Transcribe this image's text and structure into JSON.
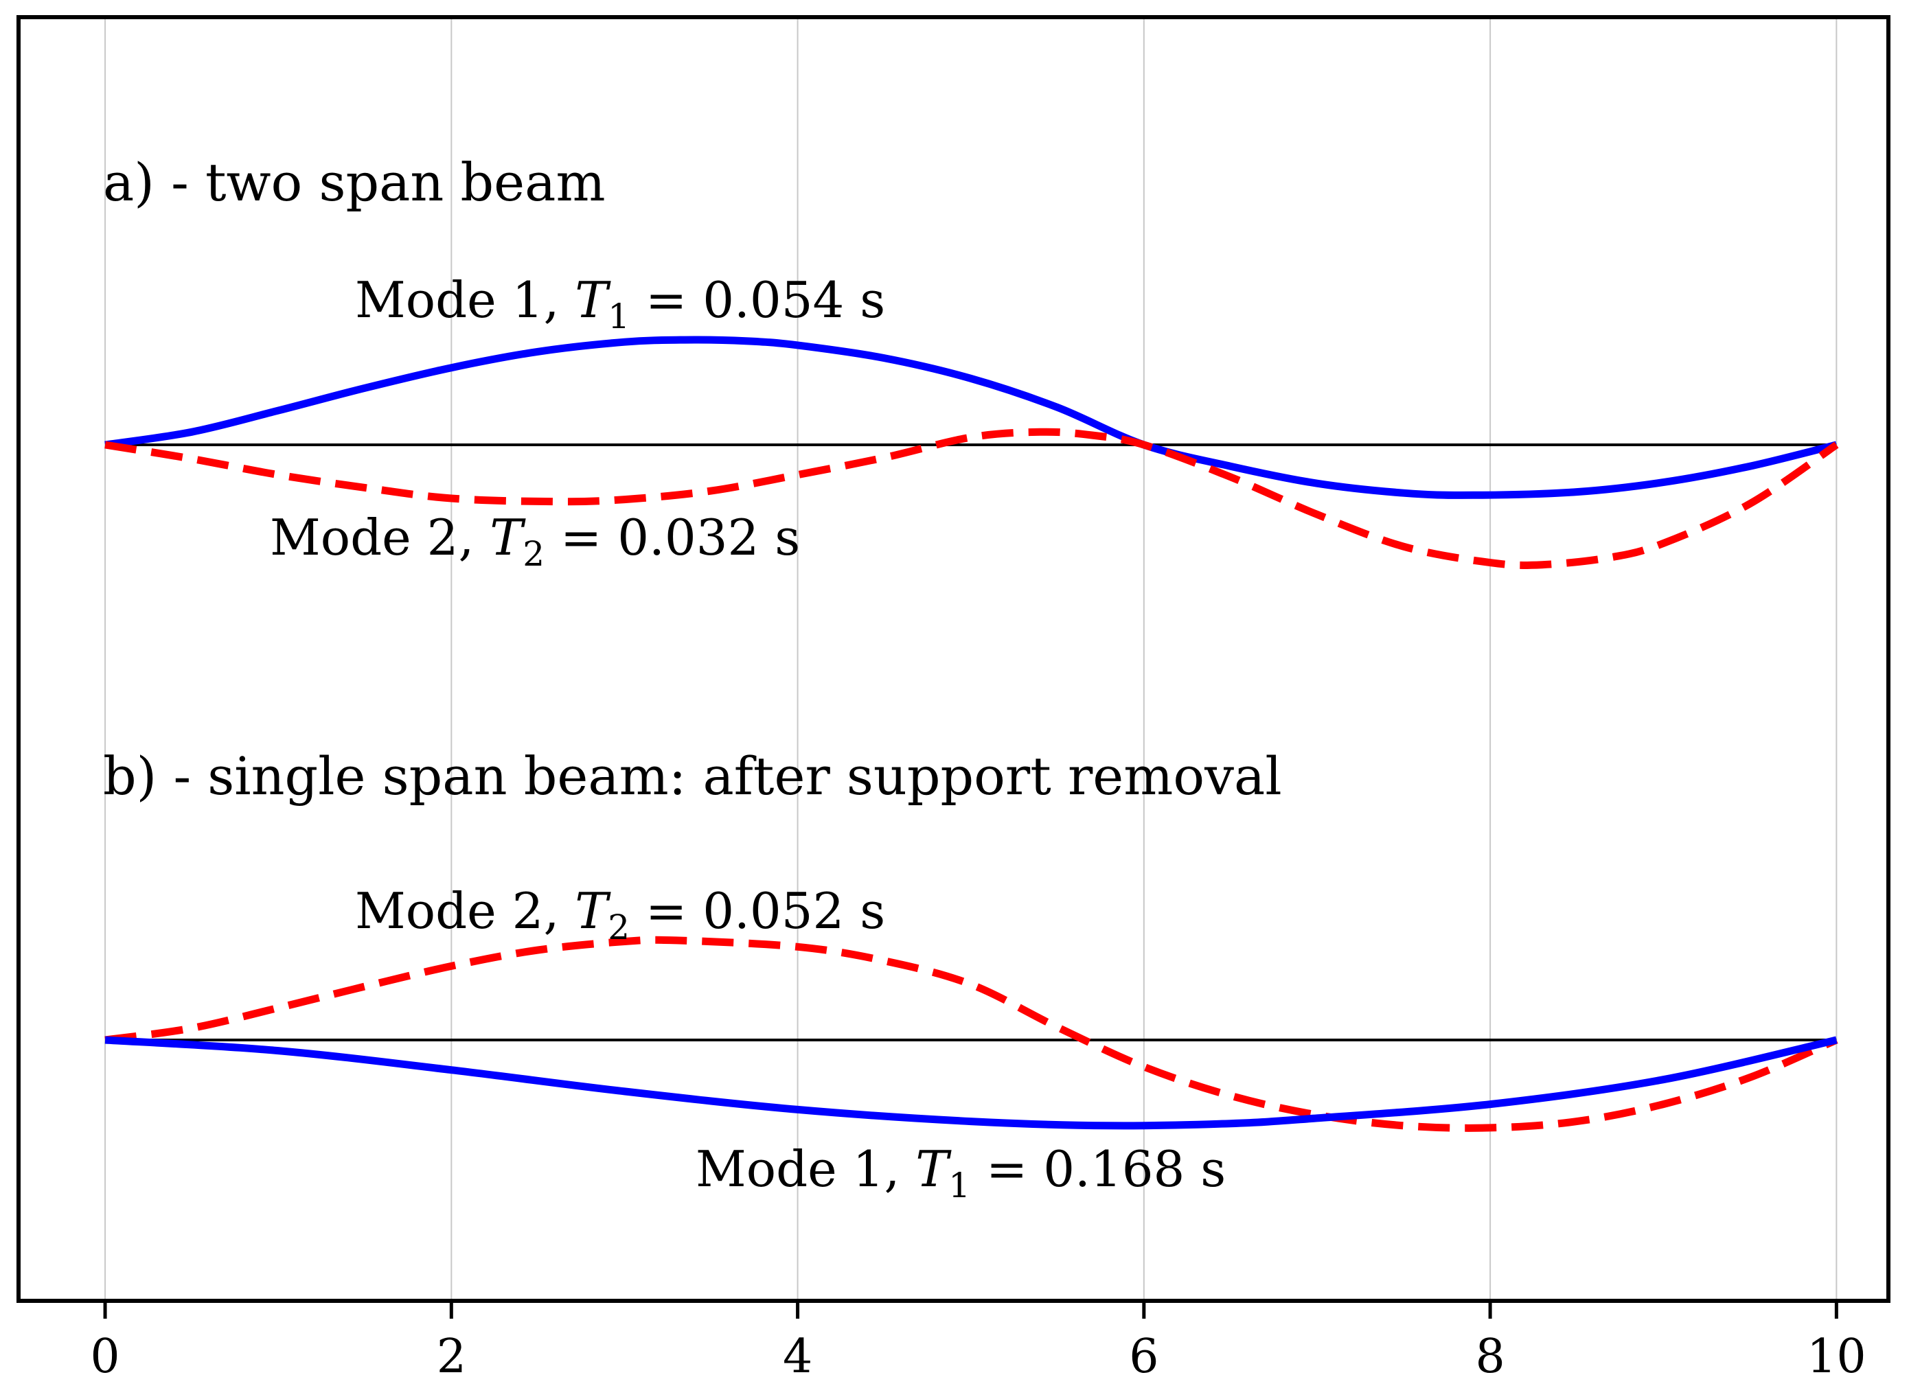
{
  "chart_data": {
    "type": "line",
    "x_range": [
      -0.5,
      10.3
    ],
    "x_ticks": [
      {
        "value": 0,
        "label": "0"
      },
      {
        "value": 2,
        "label": "2"
      },
      {
        "value": 4,
        "label": "4"
      },
      {
        "value": 6,
        "label": "6"
      },
      {
        "value": 8,
        "label": "8"
      },
      {
        "value": 10,
        "label": "10"
      }
    ],
    "grid": true,
    "colors": {
      "mode1": "#0000ff",
      "mode2": "#ff0000",
      "axis": "#000000",
      "grid": "#c8c8c8"
    },
    "panels": [
      {
        "title": "a) - two span beam",
        "baseline_y": 0,
        "support_points_x": [
          0,
          6,
          10
        ],
        "series": [
          {
            "name": "Mode 1",
            "style": "solid",
            "color": "#0000ff",
            "label": {
              "prefix": "Mode 1, ",
              "symbol": "T",
              "subscript": "1",
              "value": " = 0.054 s"
            },
            "points": [
              [
                0,
                0
              ],
              [
                0.5,
                0.12
              ],
              [
                1,
                0.32
              ],
              [
                1.5,
                0.53
              ],
              [
                2,
                0.72
              ],
              [
                2.5,
                0.87
              ],
              [
                3,
                0.96
              ],
              [
                3.35,
                0.98
              ],
              [
                3.7,
                0.97
              ],
              [
                4,
                0.93
              ],
              [
                4.5,
                0.81
              ],
              [
                5,
                0.62
              ],
              [
                5.5,
                0.35
              ],
              [
                6,
                0
              ],
              [
                6.5,
                -0.2
              ],
              [
                7,
                -0.36
              ],
              [
                7.5,
                -0.45
              ],
              [
                7.9,
                -0.47
              ],
              [
                8.5,
                -0.44
              ],
              [
                9,
                -0.35
              ],
              [
                9.5,
                -0.2
              ],
              [
                10,
                0
              ]
            ]
          },
          {
            "name": "Mode 2",
            "style": "dashed",
            "color": "#ff0000",
            "label": {
              "prefix": "Mode 2, ",
              "symbol": "T",
              "subscript": "2",
              "value": " = 0.032 s"
            },
            "points": [
              [
                0,
                0
              ],
              [
                0.5,
                -0.13
              ],
              [
                1,
                -0.28
              ],
              [
                1.5,
                -0.4
              ],
              [
                2,
                -0.5
              ],
              [
                2.6,
                -0.53
              ],
              [
                3,
                -0.51
              ],
              [
                3.5,
                -0.43
              ],
              [
                4,
                -0.28
              ],
              [
                4.5,
                -0.12
              ],
              [
                5,
                0.07
              ],
              [
                5.4,
                0.12
              ],
              [
                5.7,
                0.09
              ],
              [
                6,
                0
              ],
              [
                6.5,
                -0.3
              ],
              [
                7,
                -0.65
              ],
              [
                7.5,
                -0.95
              ],
              [
                8,
                -1.1
              ],
              [
                8.3,
                -1.12
              ],
              [
                8.7,
                -1.05
              ],
              [
                9,
                -0.92
              ],
              [
                9.5,
                -0.55
              ],
              [
                10,
                0
              ]
            ]
          }
        ]
      },
      {
        "title": "b) - single span beam: after support removal",
        "baseline_y": 0,
        "support_points_x": [
          0,
          10
        ],
        "series": [
          {
            "name": "Mode 2",
            "style": "dashed",
            "color": "#ff0000",
            "label": {
              "prefix": "Mode 2, ",
              "symbol": "T",
              "subscript": "2",
              "value": " = 0.052 s"
            },
            "points": [
              [
                0,
                0
              ],
              [
                0.5,
                0.11
              ],
              [
                1,
                0.3
              ],
              [
                1.5,
                0.5
              ],
              [
                2,
                0.69
              ],
              [
                2.5,
                0.84
              ],
              [
                3,
                0.92
              ],
              [
                3.3,
                0.93
              ],
              [
                4,
                0.87
              ],
              [
                4.5,
                0.74
              ],
              [
                5,
                0.52
              ],
              [
                5.5,
                0.12
              ],
              [
                6,
                -0.25
              ],
              [
                6.5,
                -0.52
              ],
              [
                7,
                -0.7
              ],
              [
                7.5,
                -0.8
              ],
              [
                8,
                -0.82
              ],
              [
                8.5,
                -0.76
              ],
              [
                9,
                -0.6
              ],
              [
                9.5,
                -0.35
              ],
              [
                10,
                0
              ]
            ]
          },
          {
            "name": "Mode 1",
            "style": "solid",
            "color": "#0000ff",
            "label": {
              "prefix": "Mode 1, ",
              "symbol": "T",
              "subscript": "1",
              "value": " = 0.168 s"
            },
            "points": [
              [
                0,
                0
              ],
              [
                1,
                -0.1
              ],
              [
                2,
                -0.28
              ],
              [
                3,
                -0.48
              ],
              [
                4,
                -0.65
              ],
              [
                5,
                -0.76
              ],
              [
                5.8,
                -0.8
              ],
              [
                6.5,
                -0.78
              ],
              [
                7,
                -0.73
              ],
              [
                8,
                -0.6
              ],
              [
                9,
                -0.37
              ],
              [
                10,
                0
              ]
            ]
          }
        ]
      }
    ]
  }
}
